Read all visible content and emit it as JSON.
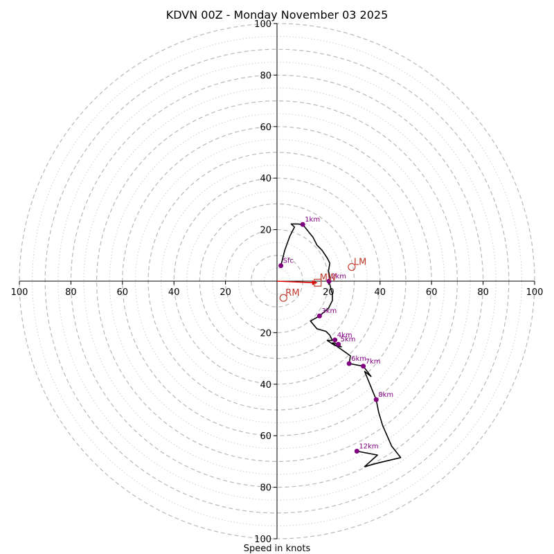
{
  "chart_data": {
    "type": "hodograph",
    "title": "KDVN 00Z - Monday November 03 2025",
    "xlabel": "Speed in knots",
    "unit": "knots",
    "max_speed": 100,
    "dashed_rings": [
      10,
      20,
      30,
      40,
      50,
      60,
      70,
      80,
      90,
      100
    ],
    "dotted_rings": [
      5,
      15,
      25,
      35,
      45,
      55,
      65,
      75,
      85,
      95
    ],
    "tick_labels": {
      "top": [
        "20",
        "40",
        "60",
        "80",
        "100"
      ],
      "bottom": [
        "20",
        "40",
        "60",
        "80",
        "100"
      ],
      "left": [
        "20",
        "40",
        "60",
        "80",
        "100"
      ],
      "right": [
        "20",
        "40",
        "60",
        "80",
        "100"
      ]
    },
    "profile": [
      {
        "u": 1.5,
        "v": 6.0
      },
      {
        "u": 3.0,
        "v": 12.0
      },
      {
        "u": 5.0,
        "v": 17.5
      },
      {
        "u": 6.8,
        "v": 21.0
      },
      {
        "u": 5.5,
        "v": 22.2
      },
      {
        "u": 8.0,
        "v": 22.2
      },
      {
        "u": 10.0,
        "v": 22.0
      },
      {
        "u": 12.0,
        "v": 19.5
      },
      {
        "u": 14.0,
        "v": 17.0
      },
      {
        "u": 15.5,
        "v": 14.0
      },
      {
        "u": 17.5,
        "v": 12.0
      },
      {
        "u": 19.5,
        "v": 9.0
      },
      {
        "u": 20.5,
        "v": 7.0
      },
      {
        "u": 20.0,
        "v": 4.0
      },
      {
        "u": 20.5,
        "v": 1.5
      },
      {
        "u": 20.2,
        "v": 0.0
      },
      {
        "u": 20.8,
        "v": -2.5
      },
      {
        "u": 21.5,
        "v": -5.0
      },
      {
        "u": 21.5,
        "v": -7.5
      },
      {
        "u": 20.0,
        "v": -10.5
      },
      {
        "u": 16.5,
        "v": -13.5
      },
      {
        "u": 13.0,
        "v": -15.5
      },
      {
        "u": 15.5,
        "v": -18.5
      },
      {
        "u": 19.0,
        "v": -19.5
      },
      {
        "u": 20.5,
        "v": -21.0
      },
      {
        "u": 21.5,
        "v": -23.0
      },
      {
        "u": 19.5,
        "v": -23.0
      },
      {
        "u": 22.5,
        "v": -25.0
      },
      {
        "u": 25.0,
        "v": -25.5
      },
      {
        "u": 22.5,
        "v": -24.0
      },
      {
        "u": 21.5,
        "v": -24.0
      },
      {
        "u": 25.0,
        "v": -26.5
      },
      {
        "u": 28.5,
        "v": -29.0
      },
      {
        "u": 28.0,
        "v": -32.0
      },
      {
        "u": 33.5,
        "v": -33.0
      },
      {
        "u": 36.5,
        "v": -37.0
      },
      {
        "u": 34.0,
        "v": -35.0
      },
      {
        "u": 38.5,
        "v": -46.0
      },
      {
        "u": 39.5,
        "v": -51.0
      },
      {
        "u": 41.0,
        "v": -56.0
      },
      {
        "u": 44.5,
        "v": -64.0
      },
      {
        "u": 48.0,
        "v": -68.5
      },
      {
        "u": 39.5,
        "v": -70.5
      },
      {
        "u": 34.0,
        "v": -72.0
      },
      {
        "u": 39.0,
        "v": -67.5
      },
      {
        "u": 31.0,
        "v": -66.0
      }
    ],
    "height_markers": [
      {
        "label": "Sfc",
        "u": 1.5,
        "v": 6.0
      },
      {
        "label": "1km",
        "u": 10.0,
        "v": 22.0
      },
      {
        "label": "2km",
        "u": 20.2,
        "v": 0.0
      },
      {
        "label": "3km",
        "u": 16.5,
        "v": -13.5
      },
      {
        "label": "4km",
        "u": 22.5,
        "v": -22.8
      },
      {
        "label": "5km",
        "u": 23.8,
        "v": -24.5
      },
      {
        "label": "6km",
        "u": 28.0,
        "v": -32.0
      },
      {
        "label": "7km",
        "u": 33.5,
        "v": -33.0
      },
      {
        "label": "8km",
        "u": 38.5,
        "v": -46.0
      },
      {
        "label": "12km",
        "u": 31.0,
        "v": -66.0
      }
    ],
    "storm_motion": [
      {
        "label": "LM",
        "u": 29.0,
        "v": 5.5,
        "marker": "circle"
      },
      {
        "label": "MW",
        "u": 15.8,
        "v": -0.6,
        "marker": "square"
      },
      {
        "label": "RM",
        "u": 2.5,
        "v": -6.5,
        "marker": "circle"
      }
    ],
    "mean_wind_arrow": {
      "from_u": 0.0,
      "from_v": 0.0,
      "to_u": 15.8,
      "to_v": -0.6
    },
    "colors": {
      "profile": "#000000",
      "height_marker": "#800080",
      "storm_motion": "#c0392b",
      "arrow": "#e00000",
      "ring": "#b8b8b8",
      "ring_dotted": "#cccccc",
      "axis": "#000000"
    }
  }
}
